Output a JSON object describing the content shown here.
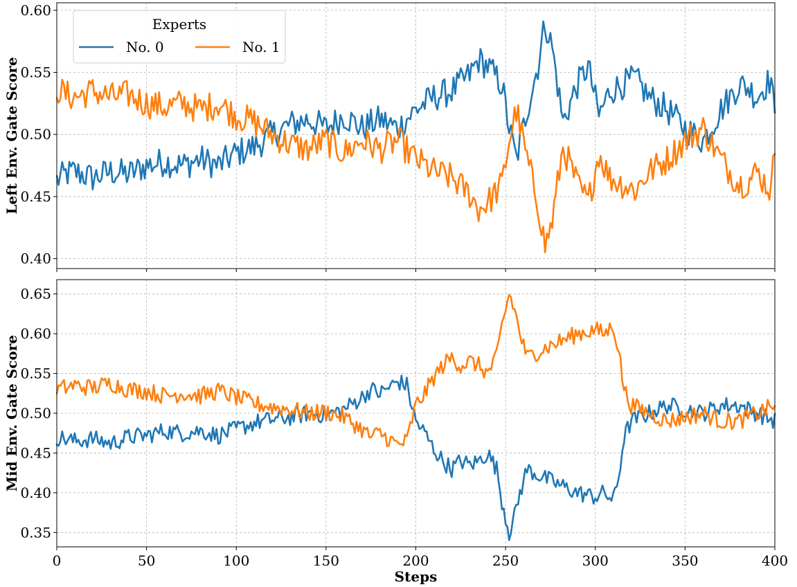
{
  "chart_data": [
    {
      "type": "line",
      "ylabel": "Left Env. Gate Score",
      "xlabel": "",
      "xlim": [
        0,
        400
      ],
      "ylim": [
        0.392,
        0.606
      ],
      "xticks": [
        0,
        50,
        100,
        150,
        200,
        250,
        300,
        350,
        400
      ],
      "yticks": [
        0.4,
        0.45,
        0.5,
        0.55,
        0.6
      ],
      "ytick_labels": [
        "0.40",
        "0.45",
        "0.50",
        "0.55",
        "0.60"
      ],
      "grid": true,
      "legend": {
        "title": "Experts",
        "placement": "upper-left",
        "entries": [
          {
            "label": "No. 0",
            "color": "#1f77b4"
          },
          {
            "label": "No. 1",
            "color": "#ff7f0e"
          }
        ]
      },
      "series": [
        {
          "name": "No. 0",
          "color": "#1f77b4",
          "keypoints": [
            [
              0,
              0.463
            ],
            [
              5,
              0.468
            ],
            [
              10,
              0.47
            ],
            [
              20,
              0.465
            ],
            [
              30,
              0.47
            ],
            [
              40,
              0.468
            ],
            [
              50,
              0.475
            ],
            [
              60,
              0.478
            ],
            [
              70,
              0.475
            ],
            [
              80,
              0.48
            ],
            [
              90,
              0.475
            ],
            [
              100,
              0.485
            ],
            [
              110,
              0.49
            ],
            [
              120,
              0.5
            ],
            [
              130,
              0.508
            ],
            [
              140,
              0.512
            ],
            [
              150,
              0.505
            ],
            [
              160,
              0.515
            ],
            [
              170,
              0.505
            ],
            [
              180,
              0.512
            ],
            [
              190,
              0.505
            ],
            [
              200,
              0.52
            ],
            [
              210,
              0.53
            ],
            [
              220,
              0.535
            ],
            [
              230,
              0.548
            ],
            [
              235,
              0.56
            ],
            [
              240,
              0.555
            ],
            [
              248,
              0.54
            ],
            [
              252,
              0.505
            ],
            [
              256,
              0.48
            ],
            [
              262,
              0.52
            ],
            [
              268,
              0.555
            ],
            [
              272,
              0.59
            ],
            [
              276,
              0.57
            ],
            [
              282,
              0.51
            ],
            [
              290,
              0.54
            ],
            [
              296,
              0.555
            ],
            [
              302,
              0.515
            ],
            [
              308,
              0.535
            ],
            [
              315,
              0.54
            ],
            [
              322,
              0.545
            ],
            [
              330,
              0.53
            ],
            [
              340,
              0.52
            ],
            [
              350,
              0.505
            ],
            [
              360,
              0.495
            ],
            [
              370,
              0.52
            ],
            [
              380,
              0.54
            ],
            [
              385,
              0.538
            ],
            [
              390,
              0.53
            ],
            [
              395,
              0.54
            ],
            [
              398,
              0.545
            ],
            [
              400,
              0.51
            ]
          ],
          "noise": 0.012
        },
        {
          "name": "No. 1",
          "color": "#ff7f0e",
          "keypoints": [
            [
              0,
              0.537
            ],
            [
              5,
              0.532
            ],
            [
              10,
              0.53
            ],
            [
              20,
              0.535
            ],
            [
              30,
              0.53
            ],
            [
              40,
              0.532
            ],
            [
              50,
              0.525
            ],
            [
              60,
              0.522
            ],
            [
              70,
              0.525
            ],
            [
              80,
              0.52
            ],
            [
              90,
              0.525
            ],
            [
              100,
              0.515
            ],
            [
              110,
              0.51
            ],
            [
              120,
              0.5
            ],
            [
              130,
              0.492
            ],
            [
              140,
              0.488
            ],
            [
              150,
              0.495
            ],
            [
              160,
              0.485
            ],
            [
              170,
              0.495
            ],
            [
              180,
              0.488
            ],
            [
              190,
              0.495
            ],
            [
              200,
              0.48
            ],
            [
              210,
              0.47
            ],
            [
              220,
              0.465
            ],
            [
              230,
              0.452
            ],
            [
              235,
              0.44
            ],
            [
              240,
              0.445
            ],
            [
              248,
              0.46
            ],
            [
              252,
              0.495
            ],
            [
              256,
              0.52
            ],
            [
              262,
              0.48
            ],
            [
              268,
              0.445
            ],
            [
              272,
              0.41
            ],
            [
              276,
              0.43
            ],
            [
              282,
              0.49
            ],
            [
              290,
              0.46
            ],
            [
              296,
              0.445
            ],
            [
              302,
              0.485
            ],
            [
              308,
              0.465
            ],
            [
              315,
              0.46
            ],
            [
              322,
              0.455
            ],
            [
              330,
              0.47
            ],
            [
              340,
              0.48
            ],
            [
              350,
              0.495
            ],
            [
              360,
              0.505
            ],
            [
              370,
              0.48
            ],
            [
              380,
              0.46
            ],
            [
              385,
              0.462
            ],
            [
              390,
              0.47
            ],
            [
              395,
              0.46
            ],
            [
              398,
              0.455
            ],
            [
              400,
              0.49
            ]
          ],
          "noise": 0.012
        }
      ]
    },
    {
      "type": "line",
      "ylabel": "Mid Env. Gate Score",
      "xlabel": "Steps",
      "xlim": [
        0,
        400
      ],
      "ylim": [
        0.332,
        0.668
      ],
      "xticks": [
        0,
        50,
        100,
        150,
        200,
        250,
        300,
        350,
        400
      ],
      "xtick_labels": [
        "0",
        "50",
        "100",
        "150",
        "200",
        "250",
        "300",
        "350",
        "400"
      ],
      "yticks": [
        0.35,
        0.4,
        0.45,
        0.5,
        0.55,
        0.6,
        0.65
      ],
      "ytick_labels": [
        "0.35",
        "0.40",
        "0.45",
        "0.50",
        "0.55",
        "0.60",
        "0.65"
      ],
      "grid": true,
      "series": [
        {
          "name": "No. 0",
          "color": "#1f77b4",
          "keypoints": [
            [
              0,
              0.47
            ],
            [
              10,
              0.465
            ],
            [
              20,
              0.468
            ],
            [
              30,
              0.462
            ],
            [
              40,
              0.47
            ],
            [
              50,
              0.472
            ],
            [
              60,
              0.478
            ],
            [
              70,
              0.475
            ],
            [
              80,
              0.478
            ],
            [
              90,
              0.472
            ],
            [
              100,
              0.48
            ],
            [
              110,
              0.488
            ],
            [
              120,
              0.492
            ],
            [
              130,
              0.495
            ],
            [
              140,
              0.5
            ],
            [
              150,
              0.498
            ],
            [
              160,
              0.505
            ],
            [
              170,
              0.52
            ],
            [
              175,
              0.53
            ],
            [
              180,
              0.525
            ],
            [
              190,
              0.54
            ],
            [
              195,
              0.535
            ],
            [
              200,
              0.49
            ],
            [
              205,
              0.475
            ],
            [
              210,
              0.455
            ],
            [
              215,
              0.44
            ],
            [
              220,
              0.43
            ],
            [
              225,
              0.44
            ],
            [
              230,
              0.435
            ],
            [
              235,
              0.44
            ],
            [
              240,
              0.45
            ],
            [
              245,
              0.43
            ],
            [
              248,
              0.39
            ],
            [
              252,
              0.35
            ],
            [
              255,
              0.37
            ],
            [
              258,
              0.4
            ],
            [
              262,
              0.43
            ],
            [
              270,
              0.42
            ],
            [
              280,
              0.41
            ],
            [
              290,
              0.4
            ],
            [
              300,
              0.395
            ],
            [
              305,
              0.4
            ],
            [
              310,
              0.39
            ],
            [
              313,
              0.42
            ],
            [
              316,
              0.47
            ],
            [
              320,
              0.49
            ],
            [
              330,
              0.5
            ],
            [
              340,
              0.51
            ],
            [
              350,
              0.505
            ],
            [
              360,
              0.5
            ],
            [
              370,
              0.51
            ],
            [
              380,
              0.51
            ],
            [
              390,
              0.5
            ],
            [
              400,
              0.49
            ]
          ],
          "noise": 0.011
        },
        {
          "name": "No. 1",
          "color": "#ff7f0e",
          "keypoints": [
            [
              0,
              0.53
            ],
            [
              10,
              0.535
            ],
            [
              20,
              0.532
            ],
            [
              30,
              0.538
            ],
            [
              40,
              0.53
            ],
            [
              50,
              0.528
            ],
            [
              60,
              0.522
            ],
            [
              70,
              0.525
            ],
            [
              80,
              0.522
            ],
            [
              90,
              0.528
            ],
            [
              100,
              0.52
            ],
            [
              110,
              0.512
            ],
            [
              120,
              0.508
            ],
            [
              130,
              0.505
            ],
            [
              140,
              0.5
            ],
            [
              150,
              0.502
            ],
            [
              160,
              0.495
            ],
            [
              170,
              0.48
            ],
            [
              175,
              0.47
            ],
            [
              180,
              0.475
            ],
            [
              190,
              0.46
            ],
            [
              195,
              0.465
            ],
            [
              200,
              0.51
            ],
            [
              205,
              0.525
            ],
            [
              210,
              0.545
            ],
            [
              215,
              0.56
            ],
            [
              220,
              0.57
            ],
            [
              225,
              0.56
            ],
            [
              230,
              0.565
            ],
            [
              235,
              0.56
            ],
            [
              240,
              0.55
            ],
            [
              245,
              0.57
            ],
            [
              248,
              0.61
            ],
            [
              252,
              0.65
            ],
            [
              255,
              0.63
            ],
            [
              258,
              0.6
            ],
            [
              262,
              0.57
            ],
            [
              270,
              0.58
            ],
            [
              280,
              0.59
            ],
            [
              290,
              0.6
            ],
            [
              300,
              0.605
            ],
            [
              305,
              0.6
            ],
            [
              310,
              0.61
            ],
            [
              313,
              0.58
            ],
            [
              316,
              0.53
            ],
            [
              320,
              0.51
            ],
            [
              330,
              0.5
            ],
            [
              340,
              0.49
            ],
            [
              350,
              0.495
            ],
            [
              360,
              0.5
            ],
            [
              370,
              0.49
            ],
            [
              380,
              0.49
            ],
            [
              390,
              0.5
            ],
            [
              400,
              0.51
            ]
          ],
          "noise": 0.011
        }
      ]
    }
  ]
}
